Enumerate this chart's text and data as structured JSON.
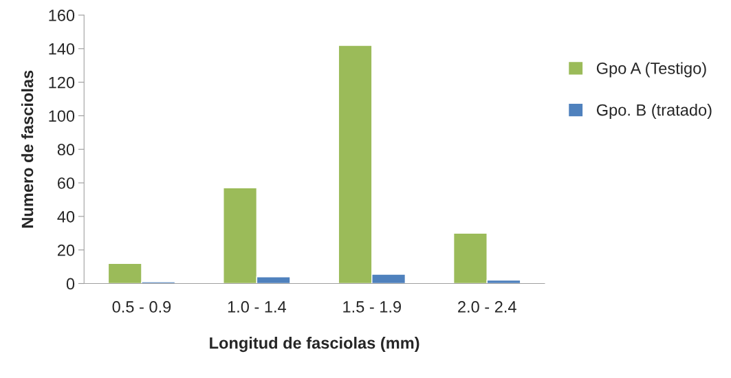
{
  "chart_data": {
    "type": "bar",
    "xlabel": "Longitud de fasciolas (mm)",
    "ylabel": "Numero de fasciolas",
    "categories": [
      "0.5 - 0.9",
      "1.0 - 1.4",
      "1.5 - 1.9",
      "2.0 - 2.4"
    ],
    "series": [
      {
        "name": "Gpo A (Testigo)",
        "color": "#9bbb59",
        "values": [
          12,
          57,
          142,
          30
        ]
      },
      {
        "name": "Gpo. B (tratado)",
        "color": "#4f81bd",
        "values": [
          1,
          4,
          5.5,
          2
        ]
      }
    ],
    "ylim": [
      0,
      160
    ],
    "yticks": [
      0,
      20,
      40,
      60,
      80,
      100,
      120,
      140,
      160
    ],
    "grid": false,
    "legend": "right"
  }
}
